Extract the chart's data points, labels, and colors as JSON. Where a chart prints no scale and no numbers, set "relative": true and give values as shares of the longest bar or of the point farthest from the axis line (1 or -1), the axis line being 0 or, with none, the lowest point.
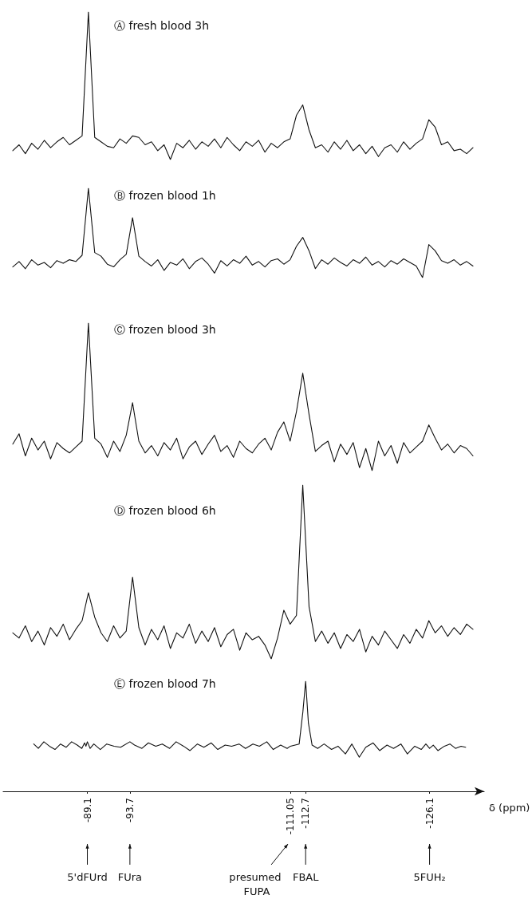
{
  "chart_data": [
    {
      "type": "line",
      "title": "Ⓐ fresh blood 3h",
      "relative": true,
      "tick_labels": false,
      "marker": "none",
      "line_style": "solid",
      "grid": false,
      "categories": [
        null,
        null,
        null,
        null,
        null,
        null,
        null,
        null,
        null,
        null,
        null,
        null,
        null,
        null,
        null,
        null,
        null,
        null,
        null,
        null,
        null,
        null,
        null,
        null,
        null,
        null,
        null,
        null,
        null,
        null,
        null,
        null,
        null,
        null,
        null,
        null,
        null,
        null,
        null,
        null,
        null,
        null,
        null,
        null,
        null,
        null,
        null,
        null,
        null,
        null,
        null,
        null,
        null,
        null,
        null,
        null,
        null,
        null,
        null,
        null,
        null,
        null,
        null,
        null,
        null,
        null,
        null,
        null,
        null,
        null,
        null,
        null,
        null,
        null
      ],
      "series": [
        {
          "color": "#111111",
          "values": [
            0.06,
            0.1,
            0.04,
            0.11,
            0.07,
            0.13,
            0.08,
            0.12,
            0.15,
            0.1,
            0.13,
            0.16,
            1,
            0.15,
            0.12,
            0.09,
            0.08,
            0.14,
            0.11,
            0.16,
            0.15,
            0.1,
            0.12,
            0.06,
            0.1,
            0,
            0.11,
            0.08,
            0.13,
            0.07,
            0.12,
            0.09,
            0.14,
            0.08,
            0.15,
            0.1,
            0.06,
            0.12,
            0.09,
            0.13,
            0.05,
            0.11,
            0.08,
            0.12,
            0.14,
            0.3,
            0.37,
            0.2,
            0.08,
            0.1,
            0.05,
            0.12,
            0.07,
            0.13,
            0.06,
            0.1,
            0.04,
            0.09,
            0.02,
            0.08,
            0.1,
            0.05,
            0.12,
            0.07,
            0.11,
            0.14,
            0.27,
            0.22,
            0.1,
            0.12,
            0.06,
            0.07,
            0.04,
            0.08
          ]
        }
      ]
    },
    {
      "type": "line",
      "title": "Ⓑ frozen blood 1h",
      "relative": true,
      "tick_labels": false,
      "marker": "none",
      "line_style": "solid",
      "grid": false,
      "categories": [
        null,
        null,
        null,
        null,
        null,
        null,
        null,
        null,
        null,
        null,
        null,
        null,
        null,
        null,
        null,
        null,
        null,
        null,
        null,
        null,
        null,
        null,
        null,
        null,
        null,
        null,
        null,
        null,
        null,
        null,
        null,
        null,
        null,
        null,
        null,
        null,
        null,
        null,
        null,
        null,
        null,
        null,
        null,
        null,
        null,
        null,
        null,
        null,
        null,
        null,
        null,
        null,
        null,
        null,
        null,
        null,
        null,
        null,
        null,
        null,
        null,
        null,
        null,
        null,
        null,
        null,
        null,
        null,
        null,
        null,
        null,
        null,
        null,
        null
      ],
      "series": [
        {
          "color": "#111111",
          "values": [
            0.12,
            0.18,
            0.1,
            0.2,
            0.14,
            0.17,
            0.11,
            0.19,
            0.16,
            0.2,
            0.18,
            0.25,
            1,
            0.28,
            0.24,
            0.15,
            0.12,
            0.2,
            0.26,
            0.67,
            0.24,
            0.18,
            0.13,
            0.2,
            0.08,
            0.17,
            0.14,
            0.21,
            0.1,
            0.18,
            0.22,
            0.15,
            0.05,
            0.19,
            0.13,
            0.2,
            0.16,
            0.24,
            0.14,
            0.18,
            0.12,
            0.19,
            0.21,
            0.15,
            0.2,
            0.35,
            0.45,
            0.3,
            0.1,
            0.2,
            0.15,
            0.22,
            0.17,
            0.13,
            0.2,
            0.16,
            0.23,
            0.14,
            0.18,
            0.12,
            0.19,
            0.15,
            0.21,
            0.17,
            0.13,
            0,
            0.37,
            0.3,
            0.19,
            0.16,
            0.2,
            0.14,
            0.18,
            0.13
          ]
        }
      ]
    },
    {
      "type": "line",
      "title": "Ⓒ frozen blood 3h",
      "relative": true,
      "tick_labels": false,
      "marker": "none",
      "line_style": "solid",
      "grid": false,
      "categories": [
        null,
        null,
        null,
        null,
        null,
        null,
        null,
        null,
        null,
        null,
        null,
        null,
        null,
        null,
        null,
        null,
        null,
        null,
        null,
        null,
        null,
        null,
        null,
        null,
        null,
        null,
        null,
        null,
        null,
        null,
        null,
        null,
        null,
        null,
        null,
        null,
        null,
        null,
        null,
        null,
        null,
        null,
        null,
        null,
        null,
        null,
        null,
        null,
        null,
        null,
        null,
        null,
        null,
        null,
        null,
        null,
        null,
        null,
        null,
        null,
        null,
        null,
        null,
        null,
        null,
        null,
        null,
        null,
        null,
        null,
        null,
        null,
        null,
        null
      ],
      "series": [
        {
          "color": "#111111",
          "values": [
            0.18,
            0.25,
            0.1,
            0.22,
            0.14,
            0.2,
            0.08,
            0.19,
            0.15,
            0.12,
            0.16,
            0.2,
            1,
            0.22,
            0.18,
            0.09,
            0.2,
            0.13,
            0.24,
            0.46,
            0.2,
            0.12,
            0.17,
            0.1,
            0.19,
            0.14,
            0.22,
            0.08,
            0.16,
            0.2,
            0.11,
            0.18,
            0.24,
            0.13,
            0.17,
            0.09,
            0.2,
            0.15,
            0.12,
            0.18,
            0.22,
            0.14,
            0.26,
            0.33,
            0.2,
            0.4,
            0.66,
            0.38,
            0.13,
            0.17,
            0.2,
            0.06,
            0.18,
            0.11,
            0.19,
            0.02,
            0.15,
            0,
            0.2,
            0.1,
            0.17,
            0.05,
            0.19,
            0.12,
            0.16,
            0.2,
            0.31,
            0.22,
            0.14,
            0.18,
            0.12,
            0.17,
            0.15,
            0.1
          ]
        }
      ]
    },
    {
      "type": "line",
      "title": "Ⓓ frozen blood 6h",
      "relative": true,
      "tick_labels": false,
      "marker": "none",
      "line_style": "solid",
      "grid": false,
      "categories": [
        null,
        null,
        null,
        null,
        null,
        null,
        null,
        null,
        null,
        null,
        null,
        null,
        null,
        null,
        null,
        null,
        null,
        null,
        null,
        null,
        null,
        null,
        null,
        null,
        null,
        null,
        null,
        null,
        null,
        null,
        null,
        null,
        null,
        null,
        null,
        null,
        null,
        null,
        null,
        null,
        null,
        null,
        null,
        null,
        null,
        null,
        null,
        null,
        null,
        null,
        null,
        null,
        null,
        null,
        null,
        null,
        null,
        null,
        null,
        null,
        null,
        null,
        null,
        null,
        null,
        null,
        null,
        null,
        null,
        null,
        null,
        null,
        null,
        null
      ],
      "series": [
        {
          "color": "#111111",
          "values": [
            0.15,
            0.12,
            0.19,
            0.1,
            0.16,
            0.08,
            0.18,
            0.13,
            0.2,
            0.11,
            0.17,
            0.22,
            0.38,
            0.24,
            0.15,
            0.1,
            0.19,
            0.12,
            0.16,
            0.47,
            0.18,
            0.08,
            0.17,
            0.11,
            0.19,
            0.06,
            0.15,
            0.12,
            0.2,
            0.09,
            0.16,
            0.1,
            0.18,
            0.07,
            0.14,
            0.17,
            0.05,
            0.15,
            0.11,
            0.13,
            0.08,
            0,
            0.12,
            0.28,
            0.2,
            0.25,
            1,
            0.3,
            0.1,
            0.16,
            0.09,
            0.15,
            0.06,
            0.14,
            0.1,
            0.17,
            0.04,
            0.13,
            0.08,
            0.16,
            0.11,
            0.06,
            0.14,
            0.09,
            0.17,
            0.12,
            0.22,
            0.15,
            0.19,
            0.13,
            0.18,
            0.14,
            0.2,
            0.17
          ]
        }
      ]
    },
    {
      "type": "line",
      "title": "Ⓔ frozen blood 7h",
      "relative": true,
      "tick_labels": "x",
      "xlim": [
        -80,
        -132
      ],
      "xticks": [
        -89.1,
        -93.7,
        -111.05,
        -112.7,
        -126.1
      ],
      "xlabel": "δ (ppm)",
      "marker": "none",
      "line_style": "solid",
      "grid": false,
      "x": [
        -83.3,
        -83.8,
        -84.4,
        -85,
        -85.6,
        -86.2,
        -86.8,
        -87.4,
        -88,
        -88.5,
        -88.8,
        -88.95,
        -89.1,
        -89.4,
        -89.8,
        -90.5,
        -91.2,
        -92,
        -92.7,
        -93.7,
        -94.2,
        -95,
        -95.7,
        -96.5,
        -97.2,
        -98,
        -98.7,
        -99.5,
        -100.2,
        -101,
        -101.7,
        -102.5,
        -103.2,
        -104,
        -104.7,
        -105.5,
        -106.2,
        -107,
        -107.7,
        -108.5,
        -109.2,
        -110,
        -110.7,
        -111.05,
        -112,
        -112.4,
        -112.7,
        -113,
        -113.4,
        -114,
        -114.7,
        -115.5,
        -116.2,
        -117,
        -117.7,
        -118.5,
        -119.2,
        -120,
        -120.7,
        -121.5,
        -122.2,
        -123,
        -123.7,
        -124.5,
        -125.2,
        -125.7,
        -126.1,
        -126.5,
        -127,
        -127.7,
        -128.3,
        -128.9,
        -129.5,
        -130
      ],
      "series": [
        {
          "color": "#111111",
          "values": [
            0.43,
            0.39,
            0.45,
            0.41,
            0.38,
            0.43,
            0.4,
            0.45,
            0.42,
            0.39,
            0.44,
            0.41,
            0.45,
            0.39,
            0.43,
            0.38,
            0.43,
            0.41,
            0.4,
            0.45,
            0.42,
            0.39,
            0.44,
            0.41,
            0.43,
            0.39,
            0.45,
            0.41,
            0.37,
            0.43,
            0.4,
            0.44,
            0.38,
            0.42,
            0.41,
            0.43,
            0.39,
            0.43,
            0.41,
            0.45,
            0.38,
            0.42,
            0.39,
            0.41,
            0.43,
            0.72,
            1,
            0.62,
            0.42,
            0.39,
            0.43,
            0.38,
            0.41,
            0.34,
            0.43,
            0.31,
            0.4,
            0.44,
            0.37,
            0.42,
            0.39,
            0.43,
            0.34,
            0.41,
            0.38,
            0.43,
            0.39,
            0.42,
            0.37,
            0.41,
            0.43,
            0.39,
            0.41,
            0.4
          ]
        }
      ],
      "annotations": [
        "5'dFUrd",
        "FUra",
        "presumed FUPA",
        "FBAL",
        "5FUH₂"
      ]
    }
  ]
}
